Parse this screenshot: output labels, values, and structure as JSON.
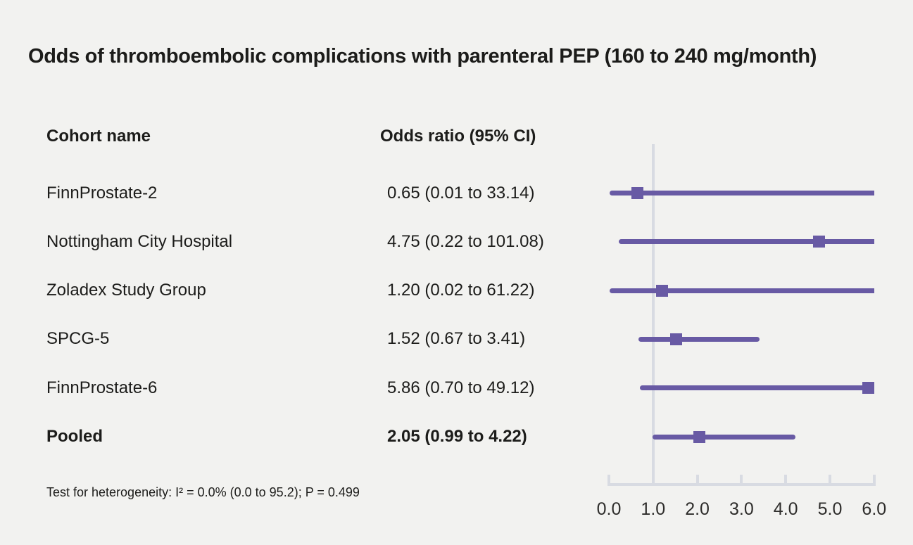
{
  "figure": {
    "title": "Odds of thromboembolic complications with parenteral PEP (160 to 240 mg/month)",
    "columns": {
      "cohort": "Cohort name",
      "odds": "Odds ratio (95% CI)"
    },
    "footnote": "Test for heterogeneity: I² = 0.0% (0.0 to 95.2); P = 0.499"
  },
  "colors": {
    "background": "#f2f2f0",
    "text": "#1c1c1a",
    "marker": "#685aa4",
    "axis_line": "#d8dbe2",
    "tick_label": "#2e2d2b"
  },
  "chart_data": {
    "type": "forest",
    "title": "Odds of thromboembolic complications with parenteral PEP (160 to 240 mg/month)",
    "xlabel": "",
    "ylabel": "",
    "legend": "none",
    "axis": {
      "min": 0.0,
      "max": 6.0,
      "ticks": [
        0.0,
        1.0,
        2.0,
        3.0,
        4.0,
        5.0,
        6.0
      ],
      "tick_labels": [
        "0.0",
        "1.0",
        "2.0",
        "3.0",
        "4.0",
        "5.0",
        "6.0"
      ],
      "reference_line": 1.0,
      "note": "Confidence intervals extending beyond 6.0 or below 0.0 are truncated at the axis limits"
    },
    "rows": [
      {
        "cohort": "FinnProstate-2",
        "label": "0.65 (0.01 to 33.14)",
        "or": 0.65,
        "ci_low": 0.01,
        "ci_high": 33.14,
        "bold": false
      },
      {
        "cohort": "Nottingham City Hospital",
        "label": "4.75 (0.22 to 101.08)",
        "or": 4.75,
        "ci_low": 0.22,
        "ci_high": 101.08,
        "bold": false
      },
      {
        "cohort": "Zoladex Study Group",
        "label": "1.20 (0.02 to 61.22)",
        "or": 1.2,
        "ci_low": 0.02,
        "ci_high": 61.22,
        "bold": false
      },
      {
        "cohort": "SPCG-5",
        "label": "1.52 (0.67 to 3.41)",
        "or": 1.52,
        "ci_low": 0.67,
        "ci_high": 3.41,
        "bold": false
      },
      {
        "cohort": "FinnProstate-6",
        "label": "5.86 (0.70 to 49.12)",
        "or": 5.86,
        "ci_low": 0.7,
        "ci_high": 49.12,
        "bold": false
      },
      {
        "cohort": "Pooled",
        "label": "2.05 (0.99 to 4.22)",
        "or": 2.05,
        "ci_low": 0.99,
        "ci_high": 4.22,
        "bold": true
      }
    ]
  }
}
